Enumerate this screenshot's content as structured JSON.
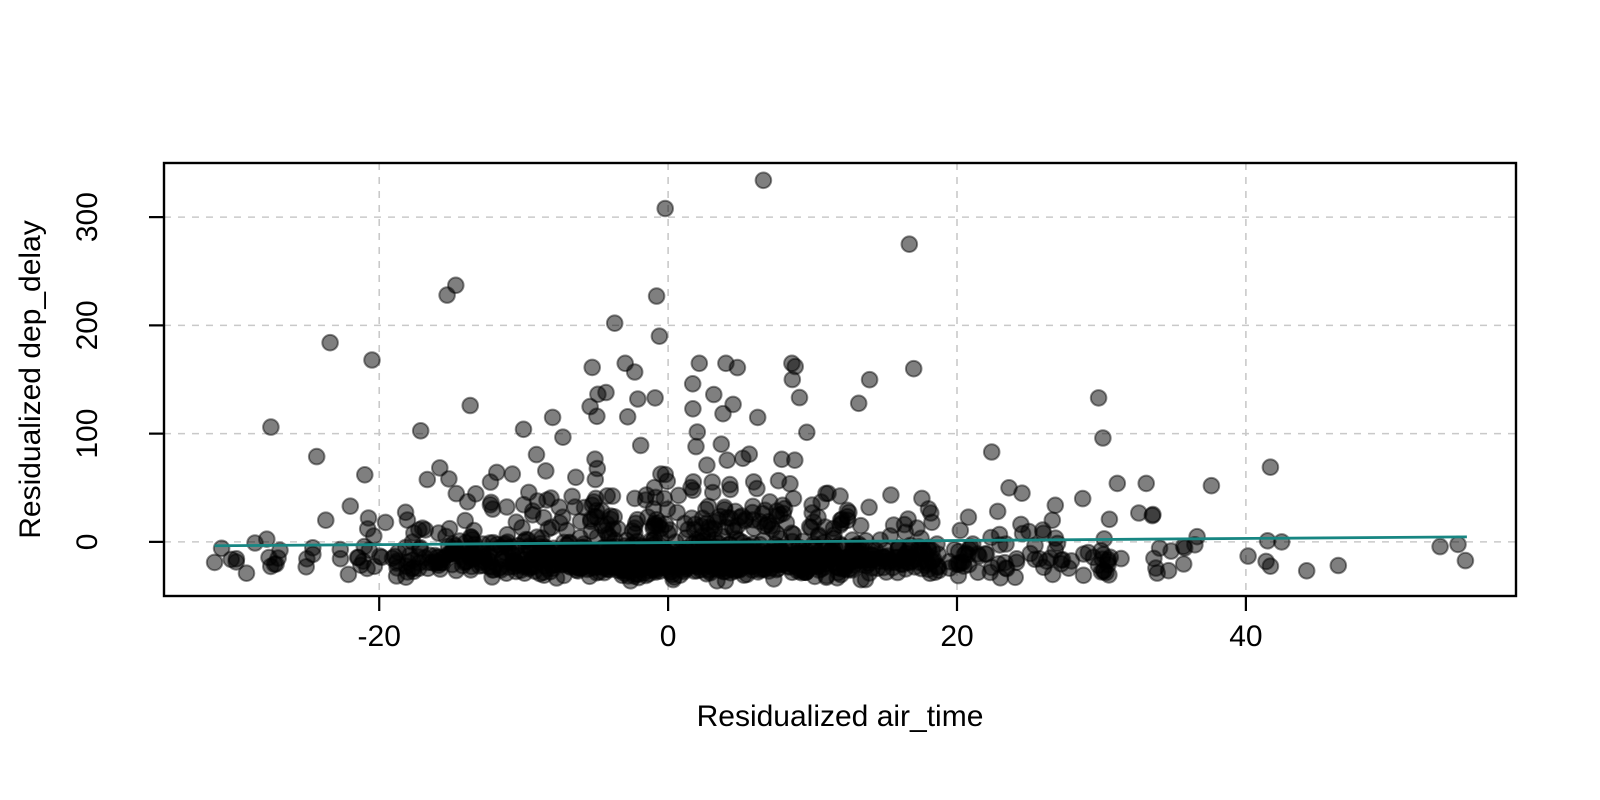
{
  "chart_data": {
    "type": "scatter",
    "title": "",
    "xlabel": "Residualized air_time",
    "ylabel": "Residualized dep_delay",
    "xlim": [
      -34.9,
      58.7
    ],
    "ylim": [
      -50,
      350
    ],
    "xticks": [
      "-20",
      "0",
      "20",
      "40"
    ],
    "xtick_values": [
      -20,
      0,
      20,
      40
    ],
    "yticks": [
      "0",
      "100",
      "200",
      "300"
    ],
    "ytick_values": [
      0,
      100,
      200,
      300
    ],
    "grid": {
      "style": "dashed",
      "color": "#c9c9c9",
      "dash": [
        7,
        7
      ],
      "width": 1.6
    },
    "frame": {
      "color": "#000000",
      "width": 2.4
    },
    "tick": {
      "color": "#000000",
      "length": 15,
      "width": 2.2,
      "label_size": 30
    },
    "axis_title_size": 30,
    "regression_line": {
      "color": "#178682",
      "width": 2.8,
      "x1": -31.4,
      "y1": -3.6,
      "x2": 55.3,
      "y2": 4.6
    },
    "point_style": {
      "radius": 7.8,
      "fill": "#000000",
      "fill_opacity": 0.5,
      "stroke": "#000000",
      "stroke_opacity": 0.45,
      "stroke_width": 2
    },
    "outliers": [
      [
        6.6,
        334
      ],
      [
        -0.2,
        308
      ],
      [
        16.7,
        275
      ],
      [
        -14.7,
        237
      ],
      [
        -15.3,
        228
      ],
      [
        -0.8,
        227
      ],
      [
        -3.7,
        202
      ],
      [
        -0.6,
        190
      ],
      [
        -23.4,
        184
      ],
      [
        -20.5,
        168
      ],
      [
        4.8,
        161
      ],
      [
        8.8,
        162
      ],
      [
        17,
        160
      ],
      [
        8.6,
        150
      ],
      [
        1.7,
        146
      ],
      [
        -4.3,
        138
      ],
      [
        29.8,
        133
      ],
      [
        -2.1,
        132
      ],
      [
        -0.9,
        133
      ],
      [
        -13.7,
        126
      ],
      [
        -5.4,
        125
      ],
      [
        4.5,
        127
      ],
      [
        6.2,
        115
      ],
      [
        -8,
        115
      ],
      [
        -27.5,
        106
      ],
      [
        30.1,
        96
      ],
      [
        22.4,
        83
      ],
      [
        41.7,
        69
      ],
      [
        -21,
        62
      ],
      [
        33.1,
        54
      ],
      [
        31.1,
        54
      ],
      [
        23.6,
        50
      ],
      [
        24.5,
        45
      ],
      [
        28.7,
        40
      ],
      [
        -22,
        33
      ],
      [
        26.6,
        20
      ],
      [
        -23.7,
        20
      ],
      [
        -20.8,
        12
      ],
      [
        41.5,
        1
      ],
      [
        -28.6,
        -1
      ],
      [
        -24.6,
        -5.5
      ],
      [
        -27,
        -15
      ],
      [
        41.4,
        -18
      ],
      [
        -31.4,
        -19
      ],
      [
        -29.9,
        -18.5
      ],
      [
        41.7,
        -22.5
      ],
      [
        46.4,
        -21.8
      ],
      [
        55.2,
        -17.3
      ],
      [
        30,
        -27.7
      ]
    ],
    "cloud": {
      "n": 1450,
      "seed": 11,
      "x_components": [
        {
          "w": 0.84,
          "type": "normal",
          "mean": 0.5,
          "sd": 9.5
        },
        {
          "w": 0.12,
          "type": "normal",
          "mean": 14,
          "sd": 14
        },
        {
          "w": 0.04,
          "type": "uniform",
          "min": -31,
          "max": 38
        }
      ],
      "x_clip": [
        -32,
        55
      ],
      "y_components": [
        {
          "w": 0.76,
          "type": "normal",
          "mean": -17,
          "sd": 7,
          "clip": [
            -36,
            -2
          ]
        },
        {
          "w": 0.155,
          "type": "halfnormal",
          "base": -6,
          "sd": 26
        },
        {
          "w": 0.065,
          "type": "exponential",
          "base": 8,
          "mean": 38
        },
        {
          "w": 0.02,
          "type": "exponential",
          "base": 40,
          "mean": 55
        }
      ],
      "y_clip": [
        -38,
        165
      ],
      "spread_center": 3,
      "spread_range": 58,
      "spread_min": 0.3
    }
  }
}
